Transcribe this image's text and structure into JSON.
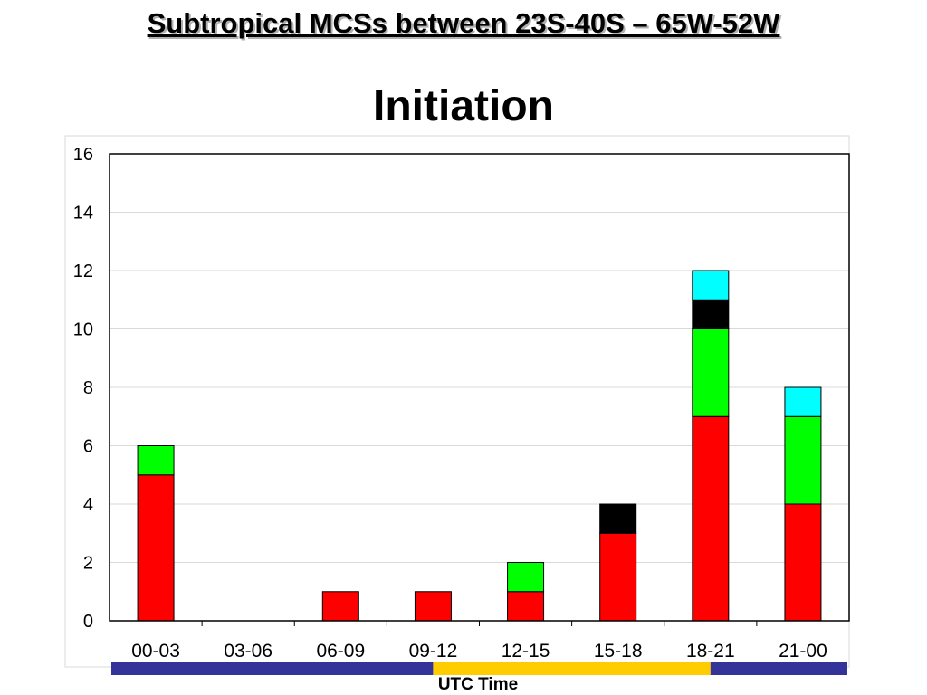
{
  "header": {
    "title": "Subtropical MCSs between 23S-40S – 65W-52W"
  },
  "chart_data": {
    "type": "bar",
    "stacked": true,
    "title": "Initiation",
    "xlabel": "UTC Time",
    "ylabel": "",
    "ylim": [
      0,
      16
    ],
    "yticks": [
      0,
      2,
      4,
      6,
      8,
      10,
      12,
      14,
      16
    ],
    "grid": true,
    "legend": "none",
    "categories": [
      "00-03",
      "03-06",
      "06-09",
      "09-12",
      "12-15",
      "15-18",
      "18-21",
      "21-00"
    ],
    "series": [
      {
        "color": "#ff0000",
        "values": [
          5,
          0,
          1,
          1,
          1,
          3,
          7,
          4
        ]
      },
      {
        "color": "#00ff00",
        "values": [
          1,
          0,
          0,
          0,
          1,
          0,
          3,
          3
        ]
      },
      {
        "color": "#000000",
        "values": [
          0,
          0,
          0,
          0,
          0,
          1,
          1,
          0
        ]
      },
      {
        "color": "#00ffff",
        "values": [
          0,
          0,
          0,
          0,
          0,
          0,
          1,
          1
        ]
      }
    ],
    "time_band": [
      {
        "from_category": "00-03",
        "to_category": "09-12",
        "color": "#333399"
      },
      {
        "from_category": "09-12",
        "to_category": "18-21",
        "color": "#ffcc00"
      },
      {
        "from_category": "18-21",
        "to_category": "21-00",
        "color": "#333399"
      }
    ]
  }
}
